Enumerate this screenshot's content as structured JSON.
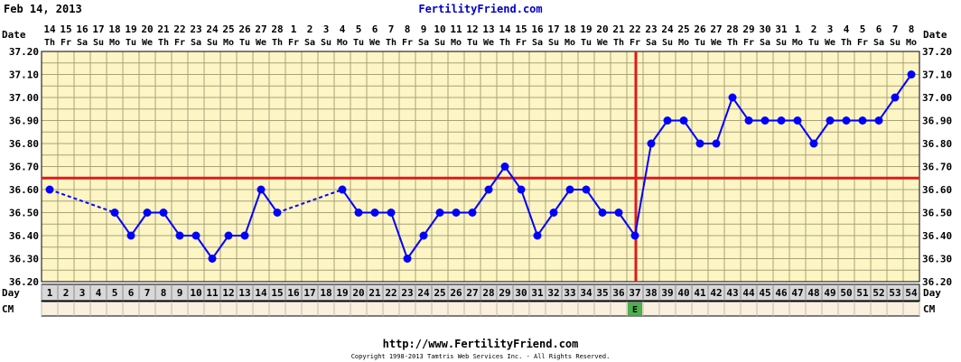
{
  "header": {
    "date_title": "Feb 14, 2013",
    "site_title": "FertilityFriend.com"
  },
  "footer": {
    "url": "http://www.FertilityFriend.com",
    "copyright": "Copyright 1998-2013 Tamtris Web Services Inc. - All Rights Reserved."
  },
  "colors": {
    "chart_bg": "#fdf5c4",
    "grid": "#a8a27a",
    "series": "#0000ff",
    "coverline": "#e01a1a",
    "ovulation_line": "#e01a1a",
    "cm_egg_white": "#4caf50",
    "day_row_bg": "#d8d8d8",
    "cm_row_bg": "#fbefe0"
  },
  "chart_data": {
    "type": "line",
    "title": "",
    "row_labels": {
      "date": "Date",
      "day": "Day",
      "cm": "CM"
    },
    "dates": [
      "14",
      "15",
      "16",
      "17",
      "18",
      "19",
      "20",
      "21",
      "22",
      "23",
      "24",
      "25",
      "26",
      "27",
      "28",
      "1",
      "2",
      "3",
      "4",
      "5",
      "6",
      "7",
      "8",
      "9",
      "10",
      "11",
      "12",
      "13",
      "14",
      "15",
      "16",
      "17",
      "18",
      "19",
      "20",
      "21",
      "22",
      "23",
      "24",
      "25",
      "26",
      "27",
      "28",
      "29",
      "30",
      "31",
      "1",
      "2",
      "3",
      "4",
      "5",
      "6",
      "7",
      "8"
    ],
    "weekdays": [
      "Th",
      "Fr",
      "Sa",
      "Su",
      "Mo",
      "Tu",
      "We",
      "Th",
      "Fr",
      "Sa",
      "Su",
      "Mo",
      "Tu",
      "We",
      "Th",
      "Fr",
      "Sa",
      "Su",
      "Mo",
      "Tu",
      "We",
      "Th",
      "Fr",
      "Sa",
      "Su",
      "Mo",
      "Tu",
      "We",
      "Th",
      "Fr",
      "Sa",
      "Su",
      "Mo",
      "Tu",
      "We",
      "Th",
      "Fr",
      "Sa",
      "Su",
      "Mo",
      "Tu",
      "We",
      "Th",
      "Fr",
      "Sa",
      "Su",
      "Mo",
      "Tu",
      "We",
      "Th",
      "Fr",
      "Sa",
      "Su",
      "Mo"
    ],
    "cycle_days": [
      1,
      2,
      3,
      4,
      5,
      6,
      7,
      8,
      9,
      10,
      11,
      12,
      13,
      14,
      15,
      16,
      17,
      18,
      19,
      20,
      21,
      22,
      23,
      24,
      25,
      26,
      27,
      28,
      29,
      30,
      31,
      32,
      33,
      34,
      35,
      36,
      37,
      38,
      39,
      40,
      41,
      42,
      43,
      44,
      45,
      46,
      47,
      48,
      49,
      50,
      51,
      52,
      53,
      54
    ],
    "temperatures": [
      {
        "day": 1,
        "temp": 36.6
      },
      {
        "day": 5,
        "temp": 36.5
      },
      {
        "day": 6,
        "temp": 36.4
      },
      {
        "day": 7,
        "temp": 36.5
      },
      {
        "day": 8,
        "temp": 36.5
      },
      {
        "day": 9,
        "temp": 36.4
      },
      {
        "day": 10,
        "temp": 36.4
      },
      {
        "day": 11,
        "temp": 36.3
      },
      {
        "day": 12,
        "temp": 36.4
      },
      {
        "day": 13,
        "temp": 36.4
      },
      {
        "day": 14,
        "temp": 36.6
      },
      {
        "day": 15,
        "temp": 36.5
      },
      {
        "day": 19,
        "temp": 36.6
      },
      {
        "day": 20,
        "temp": 36.5
      },
      {
        "day": 21,
        "temp": 36.5
      },
      {
        "day": 22,
        "temp": 36.5
      },
      {
        "day": 23,
        "temp": 36.3
      },
      {
        "day": 24,
        "temp": 36.4
      },
      {
        "day": 25,
        "temp": 36.5
      },
      {
        "day": 26,
        "temp": 36.5
      },
      {
        "day": 27,
        "temp": 36.5
      },
      {
        "day": 28,
        "temp": 36.6
      },
      {
        "day": 29,
        "temp": 36.7
      },
      {
        "day": 30,
        "temp": 36.6
      },
      {
        "day": 31,
        "temp": 36.4
      },
      {
        "day": 32,
        "temp": 36.5
      },
      {
        "day": 33,
        "temp": 36.6
      },
      {
        "day": 34,
        "temp": 36.6
      },
      {
        "day": 35,
        "temp": 36.5
      },
      {
        "day": 36,
        "temp": 36.5
      },
      {
        "day": 37,
        "temp": 36.4
      },
      {
        "day": 38,
        "temp": 36.8
      },
      {
        "day": 39,
        "temp": 36.9
      },
      {
        "day": 40,
        "temp": 36.9
      },
      {
        "day": 41,
        "temp": 36.8
      },
      {
        "day": 42,
        "temp": 36.8
      },
      {
        "day": 43,
        "temp": 37.0
      },
      {
        "day": 44,
        "temp": 36.9
      },
      {
        "day": 45,
        "temp": 36.9
      },
      {
        "day": 46,
        "temp": 36.9
      },
      {
        "day": 47,
        "temp": 36.9
      },
      {
        "day": 48,
        "temp": 36.8
      },
      {
        "day": 49,
        "temp": 36.9
      },
      {
        "day": 50,
        "temp": 36.9
      },
      {
        "day": 51,
        "temp": 36.9
      },
      {
        "day": 52,
        "temp": 36.9
      },
      {
        "day": 53,
        "temp": 37.0
      },
      {
        "day": 54,
        "temp": 37.1
      }
    ],
    "dashed_segments": [
      [
        1,
        5
      ],
      [
        15,
        19
      ]
    ],
    "y_ticks": [
      "36.20",
      "36.30",
      "36.40",
      "36.50",
      "36.60",
      "36.70",
      "36.80",
      "36.90",
      "37.00",
      "37.10",
      "37.20"
    ],
    "ylim": [
      36.2,
      37.2
    ],
    "y_step": 0.05,
    "coverline_temp": 36.65,
    "ovulation_day": 37,
    "cervical_mucus": [
      {
        "day": 37,
        "label": "E"
      }
    ],
    "grid": true
  }
}
